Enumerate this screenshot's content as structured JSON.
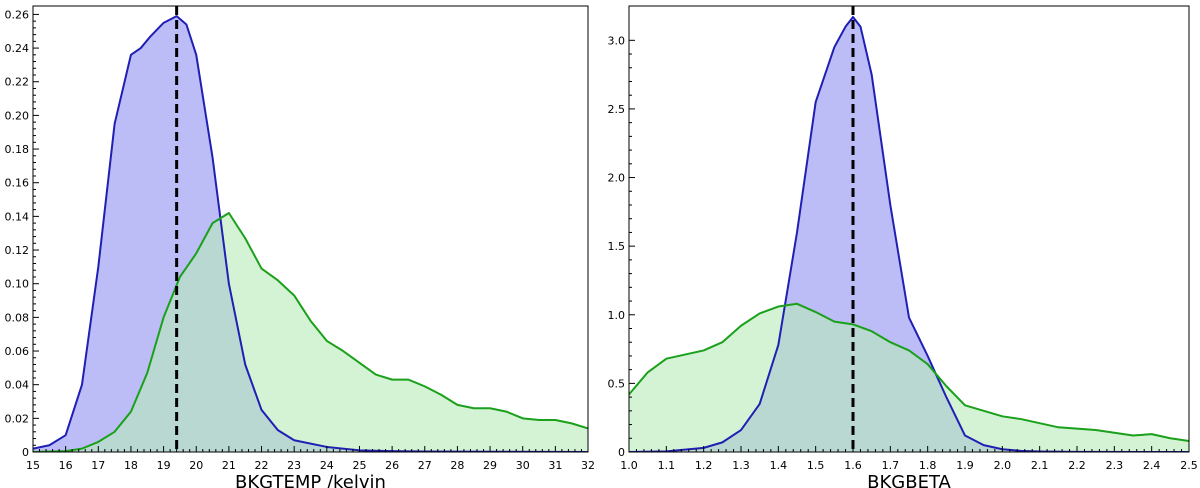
{
  "chart_data": [
    {
      "type": "area",
      "xlabel": "BKGTEMP /kelvin",
      "ylabel": "",
      "xlim": [
        15,
        32
      ],
      "ylim": [
        0,
        0.265
      ],
      "xticks": [
        15,
        16,
        17,
        18,
        19,
        20,
        21,
        22,
        23,
        24,
        25,
        26,
        27,
        28,
        29,
        30,
        31,
        32
      ],
      "xtick_labels": [
        "15",
        "16",
        "17",
        "18",
        "19",
        "20",
        "21",
        "22",
        "23",
        "24",
        "25",
        "26",
        "27",
        "28",
        "29",
        "30",
        "31",
        "32"
      ],
      "yticks": [
        0,
        0.02,
        0.04,
        0.06,
        0.08,
        0.1,
        0.12,
        0.14,
        0.16,
        0.18,
        0.2,
        0.22,
        0.24,
        0.26
      ],
      "ytick_labels": [
        "0",
        "0.02",
        "0.04",
        "0.06",
        "0.08",
        "0.10",
        "0.12",
        "0.14",
        "0.16",
        "0.18",
        "0.20",
        "0.22",
        "0.24",
        "0.26"
      ],
      "vline": 19.4,
      "series": [
        {
          "color": "#1f1fb4",
          "fill": "#bcbcf7",
          "x": [
            15,
            15.5,
            16,
            16.5,
            17,
            17.5,
            18,
            18.3,
            18.6,
            19,
            19.4,
            19.7,
            20,
            20.5,
            21,
            21.5,
            22,
            22.5,
            23,
            24,
            25,
            26,
            27,
            28,
            32
          ],
          "y": [
            0.002,
            0.004,
            0.01,
            0.04,
            0.11,
            0.195,
            0.236,
            0.24,
            0.247,
            0.255,
            0.259,
            0.254,
            0.236,
            0.175,
            0.1,
            0.052,
            0.025,
            0.013,
            0.007,
            0.003,
            0.001,
            0.0005,
            0.0003,
            0.0002,
            0
          ]
        },
        {
          "color": "#1aa01a",
          "fill": "#b8ebb8",
          "x": [
            15,
            16,
            16.5,
            17,
            17.5,
            18,
            18.5,
            19,
            19.5,
            20,
            20.5,
            21,
            21.5,
            22,
            22.5,
            23,
            23.5,
            24,
            24.5,
            25,
            25.5,
            26,
            26.5,
            27,
            27.5,
            28,
            28.5,
            29,
            29.5,
            30,
            30.5,
            31,
            31.5,
            32
          ],
          "y": [
            0,
            0.0005,
            0.002,
            0.006,
            0.012,
            0.024,
            0.047,
            0.08,
            0.104,
            0.118,
            0.136,
            0.142,
            0.127,
            0.109,
            0.102,
            0.093,
            0.078,
            0.066,
            0.06,
            0.053,
            0.046,
            0.043,
            0.043,
            0.039,
            0.034,
            0.028,
            0.026,
            0.026,
            0.024,
            0.02,
            0.019,
            0.019,
            0.017,
            0.014
          ]
        }
      ]
    },
    {
      "type": "area",
      "xlabel": "BKGBETA",
      "ylabel": "",
      "xlim": [
        1.0,
        2.5
      ],
      "ylim": [
        0,
        3.25
      ],
      "xticks": [
        1.0,
        1.1,
        1.2,
        1.3,
        1.4,
        1.5,
        1.6,
        1.7,
        1.8,
        1.9,
        2.0,
        2.1,
        2.2,
        2.3,
        2.4,
        2.5
      ],
      "xtick_labels": [
        "1.0",
        "1.1",
        "1.2",
        "1.3",
        "1.4",
        "1.5",
        "1.6",
        "1.7",
        "1.8",
        "1.9",
        "2.0",
        "2.1",
        "2.2",
        "2.3",
        "2.4",
        "2.5"
      ],
      "yticks": [
        0,
        0.5,
        1.0,
        1.5,
        2.0,
        2.5,
        3.0
      ],
      "ytick_labels": [
        "0",
        "0.5",
        "1.0",
        "1.5",
        "2.0",
        "2.5",
        "3.0"
      ],
      "vline": 1.6,
      "series": [
        {
          "color": "#1f1fb4",
          "fill": "#bcbcf7",
          "x": [
            1.0,
            1.1,
            1.2,
            1.25,
            1.3,
            1.35,
            1.4,
            1.45,
            1.5,
            1.55,
            1.58,
            1.6,
            1.62,
            1.65,
            1.7,
            1.75,
            1.8,
            1.85,
            1.9,
            1.95,
            2.0,
            2.05,
            2.1,
            2.2,
            2.5
          ],
          "y": [
            0,
            0.005,
            0.03,
            0.07,
            0.16,
            0.35,
            0.78,
            1.6,
            2.55,
            2.95,
            3.1,
            3.17,
            3.1,
            2.75,
            1.8,
            0.98,
            0.7,
            0.4,
            0.12,
            0.05,
            0.02,
            0.008,
            0.004,
            0.001,
            0
          ],
          "peak": 3.17
        },
        {
          "color": "#1aa01a",
          "fill": "#b8ebb8",
          "x": [
            1.0,
            1.05,
            1.1,
            1.15,
            1.2,
            1.25,
            1.3,
            1.35,
            1.4,
            1.45,
            1.5,
            1.55,
            1.6,
            1.65,
            1.7,
            1.75,
            1.8,
            1.85,
            1.9,
            1.95,
            2.0,
            2.05,
            2.1,
            2.15,
            2.2,
            2.25,
            2.3,
            2.35,
            2.4,
            2.45,
            2.5
          ],
          "y": [
            0.42,
            0.58,
            0.68,
            0.71,
            0.74,
            0.8,
            0.92,
            1.01,
            1.06,
            1.08,
            1.02,
            0.95,
            0.93,
            0.88,
            0.8,
            0.74,
            0.64,
            0.48,
            0.34,
            0.3,
            0.26,
            0.24,
            0.21,
            0.18,
            0.17,
            0.16,
            0.14,
            0.12,
            0.13,
            0.1,
            0.08
          ]
        }
      ]
    }
  ]
}
